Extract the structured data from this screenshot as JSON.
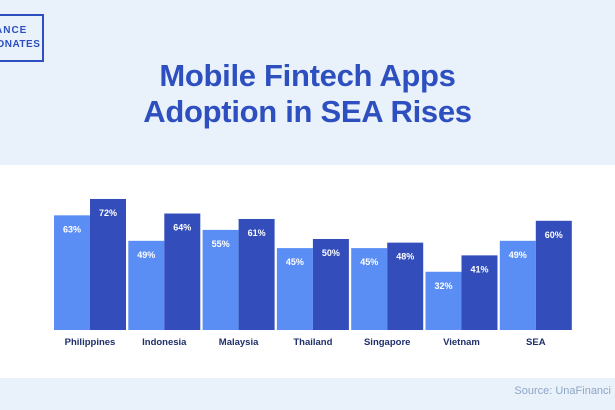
{
  "brand": {
    "logo_line1": "ANCE",
    "logo_line2": "DNATES"
  },
  "header": {
    "title_line1": "Mobile Fintech Apps",
    "title_line2": "Adoption in SEA Rises"
  },
  "footer": {
    "source": "Source: UnaFinanci"
  },
  "colors": {
    "background": "#e9f1fb",
    "title": "#2d4fbf",
    "series_light": "#5b8ef5",
    "series_dark": "#334dbb",
    "label_text": "#ffffff",
    "category_text": "#1e2f6b"
  },
  "chart_data": {
    "type": "bar",
    "categories": [
      "Philippines",
      "Indonesia",
      "Malaysia",
      "Thailand",
      "Singapore",
      "Vietnam",
      "SEA"
    ],
    "series": [
      {
        "values": [
          63,
          49,
          55,
          45,
          45,
          32,
          49
        ],
        "labels": [
          "63%",
          "49%",
          "55%",
          "45%",
          "45%",
          "32%",
          "49%"
        ]
      },
      {
        "values": [
          72,
          64,
          61,
          50,
          48,
          41,
          60
        ],
        "labels": [
          "72%",
          "64%",
          "61%",
          "50%",
          "48%",
          "41%",
          "60%"
        ]
      }
    ],
    "ylim": [
      0,
      100
    ],
    "grid": false,
    "legend": "none"
  }
}
